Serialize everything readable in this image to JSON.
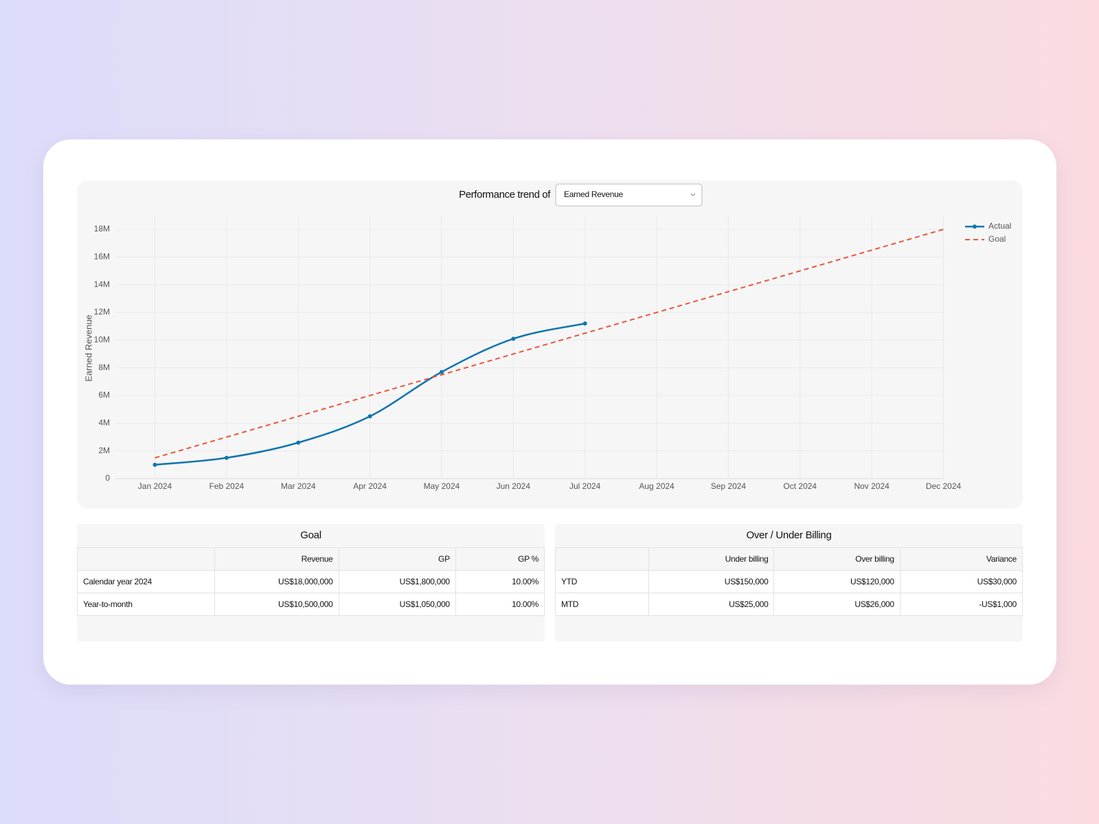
{
  "chart_data": {
    "type": "line",
    "header_label": "Performance trend of",
    "selector_value": "Earned Revenue",
    "ylabel": "Earned Revenue",
    "categories": [
      "Jan 2024",
      "Feb 2024",
      "Mar 2024",
      "Apr 2024",
      "May 2024",
      "Jun 2024",
      "Jul 2024",
      "Aug 2024",
      "Sep 2024",
      "Oct 2024",
      "Nov 2024",
      "Dec 2024"
    ],
    "series": [
      {
        "name": "Actual",
        "color": "#0f76ad",
        "dashed": false,
        "markers": true,
        "values": [
          1000000,
          1500000,
          2600000,
          4500000,
          7700000,
          10100000,
          11200000,
          null,
          null,
          null,
          null,
          null
        ]
      },
      {
        "name": "Goal",
        "color": "#e8553a",
        "dashed": true,
        "markers": false,
        "values": [
          1500000,
          3000000,
          4500000,
          6000000,
          7500000,
          9000000,
          10500000,
          12000000,
          13500000,
          15000000,
          16500000,
          18000000
        ]
      }
    ],
    "ylim": [
      0,
      19000000
    ],
    "yticks": [
      0,
      {
        "value": 2000000,
        "label": "2M"
      },
      {
        "value": 4000000,
        "label": "4M"
      },
      {
        "value": 6000000,
        "label": "6M"
      },
      {
        "value": 8000000,
        "label": "8M"
      },
      {
        "value": 10000000,
        "label": "10M"
      },
      {
        "value": 12000000,
        "label": "12M"
      },
      {
        "value": 14000000,
        "label": "14M"
      },
      {
        "value": 16000000,
        "label": "16M"
      },
      {
        "value": 18000000,
        "label": "18M"
      }
    ],
    "grid": true,
    "legend": "top-right"
  },
  "goal_table": {
    "title": "Goal",
    "columns": [
      "Revenue",
      "GP",
      "GP %"
    ],
    "rows": [
      [
        "Calendar year 2024",
        "US$18,000,000",
        "US$1,800,000",
        "10.00%"
      ],
      [
        "Year-to-month",
        "US$10,500,000",
        "US$1,050,000",
        "10.00%"
      ]
    ]
  },
  "billing_table": {
    "title": "Over / Under Billing",
    "columns": [
      "Under billing",
      "Over billing",
      "Variance"
    ],
    "rows": [
      [
        "YTD",
        "US$150,000",
        "US$120,000",
        "US$30,000"
      ],
      [
        "MTD",
        "US$25,000",
        "US$26,000",
        "-US$1,000"
      ]
    ]
  }
}
